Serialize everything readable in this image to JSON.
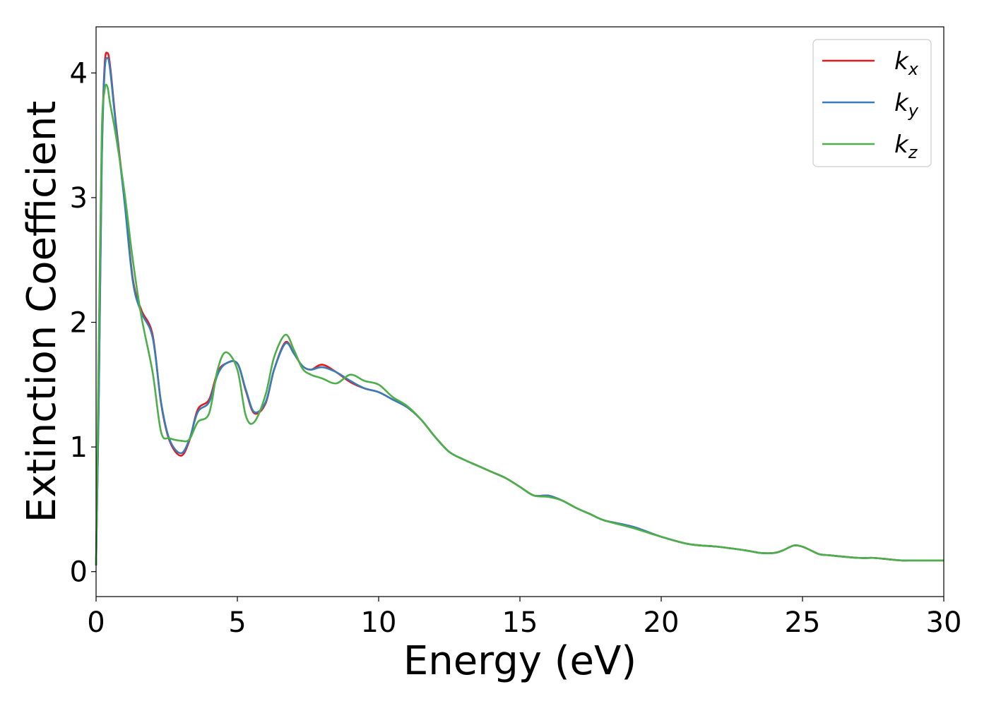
{
  "chart_data": {
    "type": "line",
    "title": "",
    "xlabel": "Energy (eV)",
    "ylabel": "Extinction Coefficient",
    "xlim": [
      0,
      30
    ],
    "ylim": [
      -0.2,
      4.37
    ],
    "xticks": [
      0,
      5,
      10,
      15,
      20,
      25,
      30
    ],
    "yticks": [
      0,
      1,
      2,
      3,
      4
    ],
    "grid": false,
    "legend": "top-right",
    "series": [
      {
        "name": "k",
        "subscript": "x",
        "color": "#e41a1c",
        "x": [
          0,
          0.1,
          0.2,
          0.3,
          0.4,
          0.5,
          0.7,
          1.0,
          1.3,
          1.6,
          2.0,
          2.3,
          2.6,
          3.0,
          3.3,
          3.6,
          4.0,
          4.3,
          4.6,
          5.0,
          5.3,
          5.6,
          6.0,
          6.3,
          6.7,
          7.0,
          7.3,
          7.6,
          8.0,
          8.5,
          9.0,
          9.5,
          10.0,
          10.5,
          11.0,
          11.5,
          12.0,
          12.5,
          13.0,
          13.5,
          14.0,
          14.5,
          15.0,
          15.5,
          16.0,
          16.5,
          17.0,
          17.5,
          18.0,
          19.0,
          20.0,
          21.0,
          22.0,
          23.0,
          23.5,
          24.0,
          24.3,
          24.7,
          25.0,
          25.3,
          25.6,
          26.0,
          27.0,
          27.5,
          28.0,
          28.5,
          29.0,
          30.0
        ],
        "values": [
          0.05,
          1.5,
          3.3,
          4.05,
          4.16,
          4.05,
          3.6,
          3.0,
          2.35,
          2.1,
          1.9,
          1.35,
          1.05,
          0.93,
          1.05,
          1.3,
          1.38,
          1.6,
          1.67,
          1.67,
          1.45,
          1.27,
          1.35,
          1.62,
          1.84,
          1.75,
          1.65,
          1.62,
          1.66,
          1.6,
          1.52,
          1.47,
          1.44,
          1.38,
          1.32,
          1.22,
          1.08,
          0.96,
          0.9,
          0.85,
          0.8,
          0.75,
          0.68,
          0.61,
          0.61,
          0.57,
          0.51,
          0.46,
          0.41,
          0.36,
          0.28,
          0.22,
          0.2,
          0.17,
          0.15,
          0.15,
          0.17,
          0.21,
          0.2,
          0.17,
          0.14,
          0.13,
          0.11,
          0.11,
          0.1,
          0.09,
          0.09,
          0.09
        ]
      },
      {
        "name": "k",
        "subscript": "y",
        "color": "#377eb8",
        "x": [
          0,
          0.1,
          0.2,
          0.3,
          0.4,
          0.5,
          0.7,
          1.0,
          1.3,
          1.6,
          2.0,
          2.3,
          2.6,
          3.0,
          3.3,
          3.6,
          4.0,
          4.3,
          4.6,
          5.0,
          5.3,
          5.6,
          6.0,
          6.3,
          6.7,
          7.0,
          7.3,
          7.6,
          8.0,
          8.5,
          9.0,
          9.5,
          10.0,
          10.5,
          11.0,
          11.5,
          12.0,
          12.5,
          13.0,
          13.5,
          14.0,
          14.5,
          15.0,
          15.5,
          16.0,
          16.5,
          17.0,
          17.5,
          18.0,
          19.0,
          20.0,
          21.0,
          22.0,
          23.0,
          23.5,
          24.0,
          24.3,
          24.7,
          25.0,
          25.3,
          25.6,
          26.0,
          27.0,
          27.5,
          28.0,
          28.5,
          29.0,
          30.0
        ],
        "values": [
          0.05,
          1.45,
          3.25,
          4.0,
          4.12,
          4.02,
          3.58,
          2.98,
          2.33,
          2.08,
          1.88,
          1.36,
          1.06,
          0.95,
          1.06,
          1.28,
          1.36,
          1.58,
          1.67,
          1.67,
          1.46,
          1.28,
          1.36,
          1.62,
          1.83,
          1.75,
          1.65,
          1.62,
          1.64,
          1.6,
          1.53,
          1.47,
          1.44,
          1.38,
          1.32,
          1.22,
          1.08,
          0.96,
          0.9,
          0.85,
          0.8,
          0.75,
          0.68,
          0.61,
          0.61,
          0.57,
          0.51,
          0.46,
          0.41,
          0.36,
          0.28,
          0.22,
          0.2,
          0.17,
          0.15,
          0.15,
          0.17,
          0.21,
          0.2,
          0.17,
          0.14,
          0.13,
          0.11,
          0.11,
          0.1,
          0.09,
          0.09,
          0.09
        ]
      },
      {
        "name": "k",
        "subscript": "z",
        "color": "#4daf4a",
        "x": [
          0,
          0.1,
          0.2,
          0.3,
          0.4,
          0.5,
          0.7,
          1.0,
          1.3,
          1.6,
          2.0,
          2.3,
          2.6,
          3.0,
          3.3,
          3.6,
          4.0,
          4.3,
          4.6,
          5.0,
          5.3,
          5.6,
          6.0,
          6.3,
          6.7,
          7.0,
          7.3,
          7.6,
          8.0,
          8.5,
          9.0,
          9.5,
          10.0,
          10.5,
          11.0,
          11.5,
          12.0,
          12.5,
          13.0,
          13.5,
          14.0,
          14.5,
          15.0,
          15.5,
          16.0,
          16.5,
          17.0,
          17.5,
          18.0,
          19.0,
          20.0,
          21.0,
          22.0,
          23.0,
          23.5,
          24.0,
          24.3,
          24.7,
          25.0,
          25.3,
          25.6,
          26.0,
          27.0,
          27.5,
          28.0,
          28.5,
          29.0,
          30.0
        ],
        "values": [
          0.05,
          1.9,
          3.5,
          3.86,
          3.89,
          3.75,
          3.5,
          3.05,
          2.5,
          2.05,
          1.6,
          1.12,
          1.07,
          1.05,
          1.06,
          1.2,
          1.27,
          1.62,
          1.76,
          1.62,
          1.25,
          1.2,
          1.42,
          1.72,
          1.9,
          1.78,
          1.63,
          1.58,
          1.55,
          1.51,
          1.58,
          1.53,
          1.5,
          1.4,
          1.33,
          1.22,
          1.08,
          0.96,
          0.9,
          0.85,
          0.8,
          0.75,
          0.68,
          0.61,
          0.6,
          0.57,
          0.51,
          0.46,
          0.41,
          0.35,
          0.28,
          0.22,
          0.2,
          0.17,
          0.15,
          0.15,
          0.17,
          0.21,
          0.2,
          0.17,
          0.14,
          0.13,
          0.11,
          0.11,
          0.1,
          0.09,
          0.09,
          0.09
        ]
      }
    ]
  }
}
